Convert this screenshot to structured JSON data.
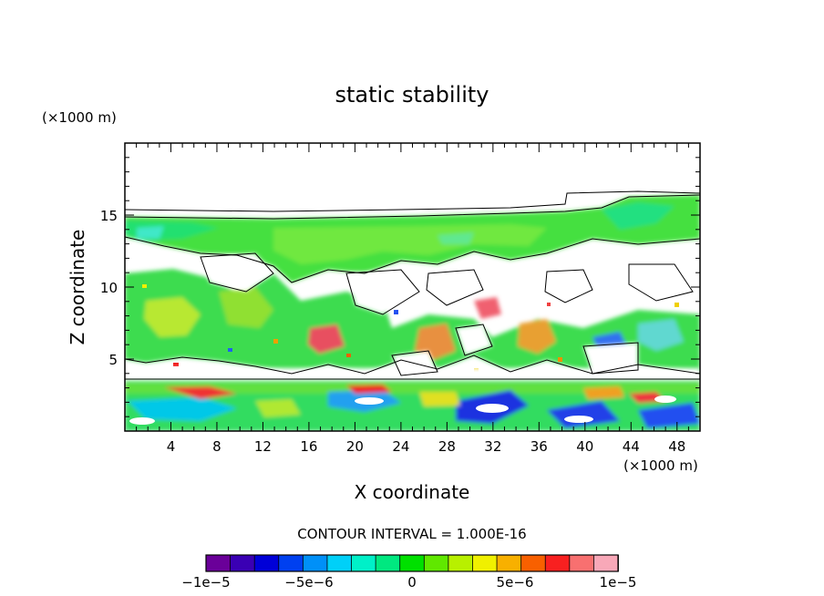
{
  "chart_data": {
    "type": "heatmap",
    "title": "static stability",
    "xlabel": "X coordinate",
    "ylabel": "Z coordinate",
    "x_unit": "(×1000 m)",
    "y_unit": "(×1000 m)",
    "xlim": [
      0,
      50
    ],
    "ylim": [
      0,
      20
    ],
    "x_ticks": [
      "4",
      "8",
      "12",
      "16",
      "20",
      "24",
      "28",
      "32",
      "36",
      "40",
      "44",
      "48"
    ],
    "y_ticks": [
      "5",
      "10",
      "15"
    ],
    "contour_interval_text": "CONTOUR INTERVAL = 1.000E-16",
    "colorbar": {
      "range": [
        -1e-05,
        1e-05
      ],
      "levels": 16,
      "tick_labels": [
        "−1e−5",
        "−5e−6",
        "0",
        "5e−6",
        "1e−5"
      ],
      "colors": [
        "#6a0099",
        "#3a00b4",
        "#0000d8",
        "#0040f0",
        "#0090f8",
        "#00d0f8",
        "#00f0c8",
        "#00e880",
        "#00e000",
        "#60e800",
        "#b8f000",
        "#f0f000",
        "#f8b000",
        "#f86000",
        "#f82020",
        "#f87070",
        "#f8a8b8"
      ]
    },
    "regions": [
      {
        "name": "top-cap-zero-line",
        "z": 15.2
      },
      {
        "name": "upper-green-layer",
        "z_range": [
          13,
          15.2
        ]
      },
      {
        "name": "mid-turbulent-layer",
        "z_range": [
          4,
          13
        ]
      },
      {
        "name": "quiet-gap-boundary",
        "z": 3.8
      },
      {
        "name": "lower-boundary-layer",
        "z_range": [
          0,
          3.5
        ]
      }
    ]
  }
}
